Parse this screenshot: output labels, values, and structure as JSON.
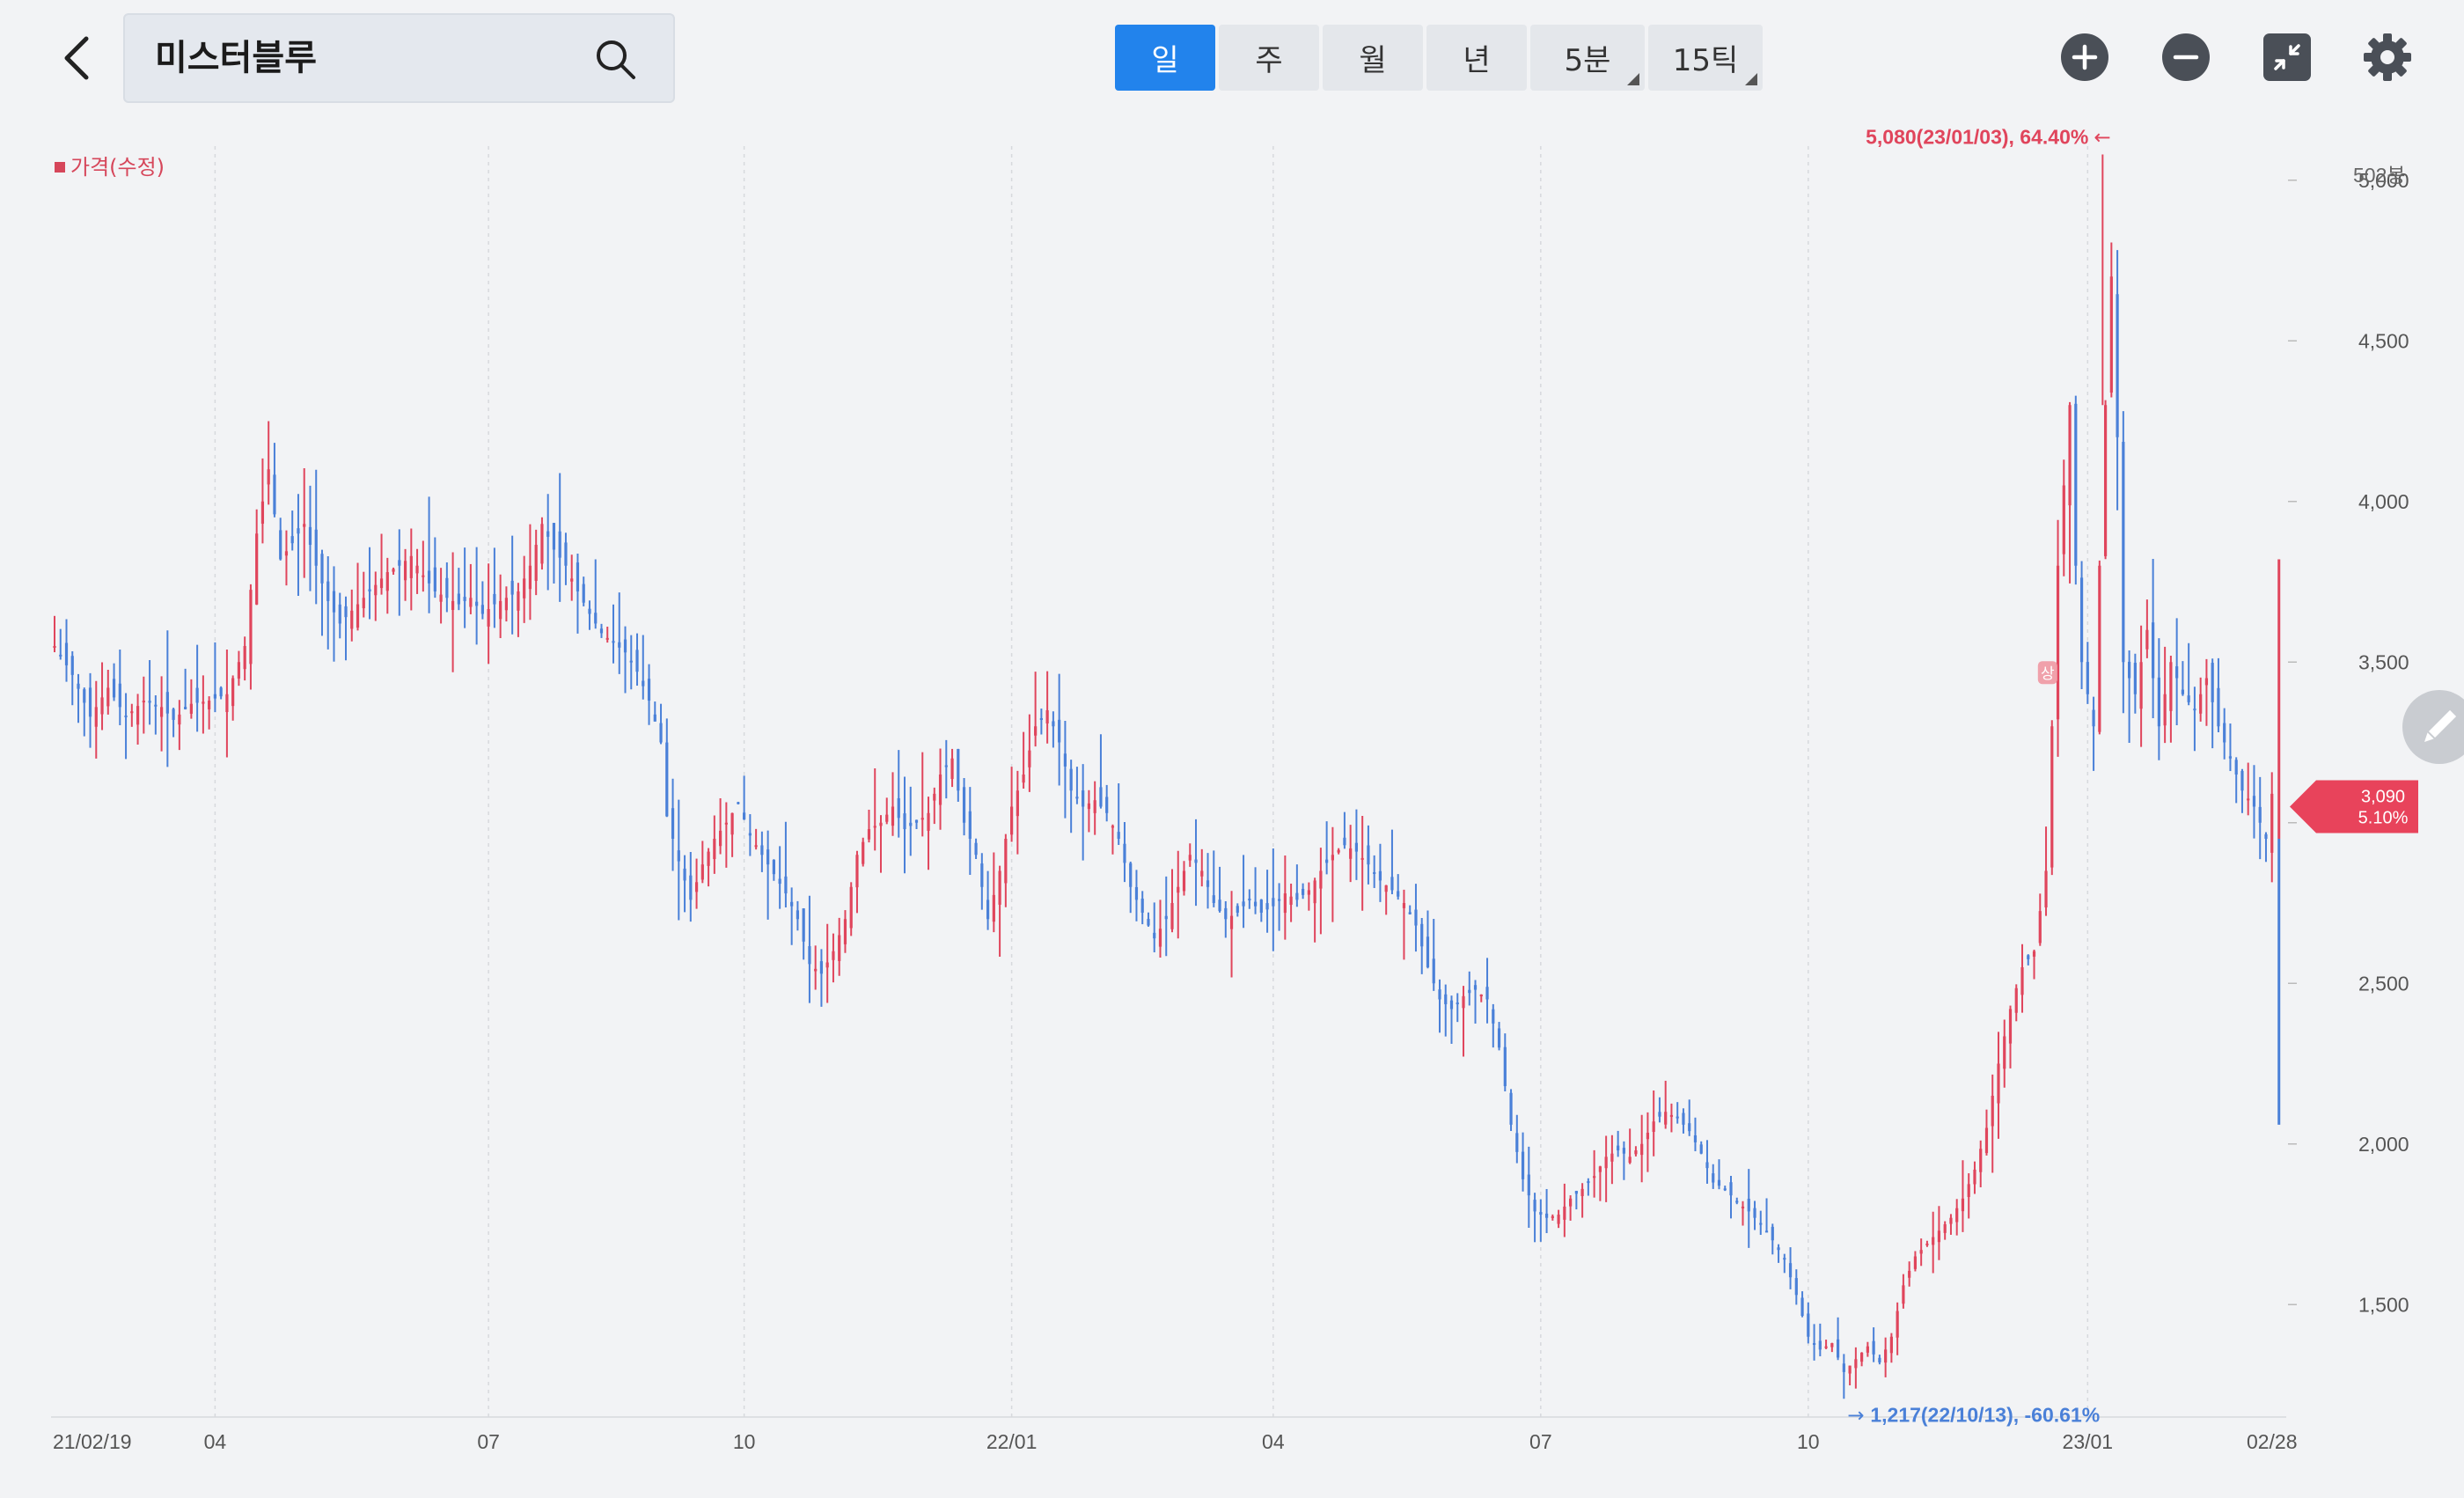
{
  "search": {
    "value": "미스터블루"
  },
  "tabs": [
    {
      "label": "일",
      "active": true,
      "corner": false
    },
    {
      "label": "주",
      "active": false,
      "corner": false
    },
    {
      "label": "월",
      "active": false,
      "corner": false
    },
    {
      "label": "년",
      "active": false,
      "corner": false
    },
    {
      "label": "5분",
      "active": false,
      "corner": true
    },
    {
      "label": "15틱",
      "active": false,
      "corner": true
    }
  ],
  "toolbar": {
    "zoom_in": "plus-circle-icon",
    "zoom_out": "minus-circle-icon",
    "collapse": "collapse-icon",
    "settings": "gear-icon"
  },
  "colors": {
    "up": "#e0455c",
    "down": "#4a80d8",
    "accent": "#2283ec",
    "grid": "#d7d9dd"
  },
  "chart_data": {
    "type": "candlestick",
    "legend": "가격(수정)",
    "bar_count_label": "502봉",
    "ylim": [
      1150,
      5150
    ],
    "y_ticks": [
      1500,
      2000,
      2500,
      3000,
      3500,
      4000,
      4500,
      5000
    ],
    "y_tick_labels": [
      "1,500",
      "2,000",
      "2,500",
      "3,000",
      "3,500",
      "4,000",
      "4,500",
      "5,000"
    ],
    "x_ticks": [
      "21/02/19",
      "04",
      "07",
      "10",
      "22/01",
      "04",
      "07",
      "10",
      "23/01",
      "02/28"
    ],
    "max_annotation": "5,080(23/01/03), 64.40%",
    "min_annotation": "1,217(22/10/13), -60.61%",
    "current_price": "3,090",
    "current_change": "5.10%",
    "upper_limit_badge": "상",
    "price_path": [
      [
        0,
        3550
      ],
      [
        3,
        3460
      ],
      [
        6,
        3330
      ],
      [
        9,
        3420
      ],
      [
        12,
        3330
      ],
      [
        15,
        3380
      ],
      [
        18,
        3360
      ],
      [
        20,
        3320
      ],
      [
        23,
        3370
      ],
      [
        26,
        3380
      ],
      [
        29,
        3400
      ],
      [
        32,
        3550
      ],
      [
        34,
        3900
      ],
      [
        36,
        4100
      ],
      [
        38,
        3820
      ],
      [
        40,
        3870
      ],
      [
        42,
        3930
      ],
      [
        44,
        3800
      ],
      [
        46,
        3690
      ],
      [
        48,
        3620
      ],
      [
        50,
        3660
      ],
      [
        52,
        3700
      ],
      [
        54,
        3740
      ],
      [
        56,
        3780
      ],
      [
        58,
        3800
      ],
      [
        60,
        3830
      ],
      [
        62,
        3770
      ],
      [
        64,
        3720
      ],
      [
        66,
        3700
      ],
      [
        68,
        3680
      ],
      [
        70,
        3700
      ],
      [
        72,
        3650
      ],
      [
        74,
        3680
      ],
      [
        76,
        3700
      ],
      [
        78,
        3720
      ],
      [
        80,
        3800
      ],
      [
        82,
        3930
      ],
      [
        84,
        3850
      ],
      [
        86,
        3800
      ],
      [
        88,
        3720
      ],
      [
        90,
        3650
      ],
      [
        92,
        3590
      ],
      [
        94,
        3560
      ],
      [
        96,
        3530
      ],
      [
        98,
        3470
      ],
      [
        100,
        3380
      ],
      [
        102,
        3250
      ],
      [
        103,
        3020
      ],
      [
        105,
        2880
      ],
      [
        107,
        2760
      ],
      [
        109,
        2870
      ],
      [
        111,
        2950
      ],
      [
        113,
        3000
      ],
      [
        115,
        3060
      ],
      [
        117,
        2960
      ],
      [
        119,
        2900
      ],
      [
        121,
        2840
      ],
      [
        123,
        2780
      ],
      [
        125,
        2700
      ],
      [
        127,
        2560
      ],
      [
        129,
        2530
      ],
      [
        131,
        2600
      ],
      [
        133,
        2700
      ],
      [
        135,
        2900
      ],
      [
        137,
        2980
      ],
      [
        139,
        3000
      ],
      [
        141,
        3050
      ],
      [
        143,
        2980
      ],
      [
        145,
        3000
      ],
      [
        147,
        3030
      ],
      [
        149,
        3150
      ],
      [
        151,
        3200
      ],
      [
        153,
        3000
      ],
      [
        155,
        2900
      ],
      [
        157,
        2700
      ],
      [
        159,
        2850
      ],
      [
        161,
        3050
      ],
      [
        163,
        3150
      ],
      [
        165,
        3300
      ],
      [
        167,
        3350
      ],
      [
        169,
        3250
      ],
      [
        171,
        3100
      ],
      [
        173,
        3050
      ],
      [
        175,
        3070
      ],
      [
        177,
        3030
      ],
      [
        179,
        2950
      ],
      [
        181,
        2800
      ],
      [
        183,
        2720
      ],
      [
        185,
        2640
      ],
      [
        187,
        2700
      ],
      [
        189,
        2800
      ],
      [
        191,
        2900
      ],
      [
        193,
        2850
      ],
      [
        195,
        2750
      ],
      [
        197,
        2700
      ],
      [
        199,
        2720
      ],
      [
        201,
        2760
      ],
      [
        203,
        2720
      ],
      [
        205,
        2740
      ],
      [
        207,
        2780
      ],
      [
        209,
        2760
      ],
      [
        211,
        2790
      ],
      [
        213,
        2850
      ],
      [
        215,
        2900
      ],
      [
        217,
        2930
      ],
      [
        219,
        2910
      ],
      [
        221,
        2870
      ],
      [
        223,
        2820
      ],
      [
        225,
        2790
      ],
      [
        227,
        2750
      ],
      [
        229,
        2680
      ],
      [
        231,
        2550
      ],
      [
        233,
        2450
      ],
      [
        235,
        2420
      ],
      [
        237,
        2460
      ],
      [
        239,
        2480
      ],
      [
        241,
        2450
      ],
      [
        243,
        2300
      ],
      [
        245,
        2060
      ],
      [
        247,
        1890
      ],
      [
        249,
        1790
      ],
      [
        251,
        1770
      ],
      [
        253,
        1780
      ],
      [
        255,
        1830
      ],
      [
        257,
        1860
      ],
      [
        259,
        1900
      ],
      [
        261,
        1960
      ],
      [
        263,
        1980
      ],
      [
        265,
        1960
      ],
      [
        267,
        2000
      ],
      [
        269,
        2070
      ],
      [
        271,
        2100
      ],
      [
        273,
        2080
      ],
      [
        275,
        2040
      ],
      [
        277,
        1970
      ],
      [
        279,
        1880
      ],
      [
        281,
        1860
      ],
      [
        283,
        1820
      ],
      [
        285,
        1790
      ],
      [
        287,
        1750
      ],
      [
        289,
        1700
      ],
      [
        291,
        1640
      ],
      [
        293,
        1530
      ],
      [
        295,
        1400
      ],
      [
        297,
        1360
      ],
      [
        299,
        1380
      ],
      [
        301,
        1290
      ],
      [
        303,
        1330
      ],
      [
        305,
        1370
      ],
      [
        307,
        1320
      ],
      [
        309,
        1400
      ],
      [
        311,
        1560
      ],
      [
        313,
        1650
      ],
      [
        315,
        1690
      ],
      [
        317,
        1730
      ],
      [
        319,
        1770
      ],
      [
        321,
        1830
      ],
      [
        323,
        1920
      ],
      [
        325,
        2050
      ],
      [
        327,
        2250
      ],
      [
        329,
        2420
      ],
      [
        331,
        2550
      ],
      [
        333,
        2600
      ],
      [
        335,
        2850
      ],
      [
        336,
        3300
      ],
      [
        337,
        3800
      ],
      [
        339,
        4300
      ],
      [
        340,
        3800
      ],
      [
        341,
        3500
      ],
      [
        343,
        3300
      ],
      [
        344,
        3800
      ],
      [
        345,
        4300
      ],
      [
        346,
        4700
      ],
      [
        347,
        4200
      ],
      [
        348,
        3500
      ],
      [
        350,
        3400
      ],
      [
        352,
        3600
      ],
      [
        354,
        3300
      ],
      [
        356,
        3500
      ],
      [
        358,
        3400
      ],
      [
        360,
        3350
      ],
      [
        362,
        3450
      ],
      [
        364,
        3300
      ],
      [
        366,
        3200
      ],
      [
        368,
        3100
      ],
      [
        370,
        3050
      ],
      [
        372,
        2950
      ],
      [
        373,
        3090
      ]
    ]
  }
}
